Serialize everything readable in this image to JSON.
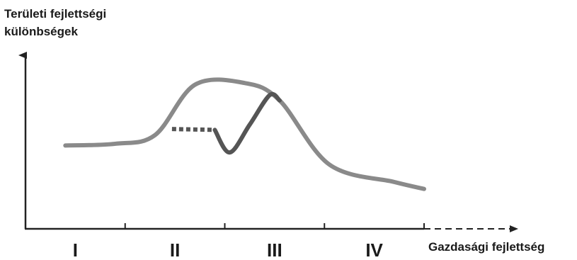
{
  "chart_data": {
    "type": "line",
    "title": "",
    "ylabel_lines": [
      "Területi fejlettségi",
      "különbségek"
    ],
    "xlabel": "Gazdasági fejlettség",
    "stages": [
      "I",
      "II",
      "III",
      "IV"
    ],
    "xlim": [
      0,
      4
    ],
    "ylim": [
      0,
      10
    ],
    "grid": false,
    "legend": "none",
    "colors": {
      "axis": "#222222",
      "main_curve": "#8a8a8a",
      "alt_curve": "#555555"
    },
    "series": [
      {
        "style": "solid",
        "points": [
          [
            0.4,
            4.8
          ],
          [
            0.9,
            4.9
          ],
          [
            1.3,
            5.4
          ],
          [
            1.7,
            8.3
          ],
          [
            2.2,
            8.4
          ],
          [
            2.55,
            7.4
          ],
          [
            3.05,
            3.7
          ],
          [
            3.7,
            2.7
          ],
          [
            4.0,
            2.3
          ]
        ]
      },
      {
        "style": "dotted",
        "points": [
          [
            1.47,
            5.75
          ],
          [
            1.9,
            5.7
          ]
        ]
      },
      {
        "style": "solid",
        "points": [
          [
            1.9,
            5.7
          ],
          [
            2.05,
            4.4
          ],
          [
            2.25,
            6.0
          ],
          [
            2.45,
            7.7
          ],
          [
            2.55,
            7.4
          ]
        ]
      }
    ]
  }
}
